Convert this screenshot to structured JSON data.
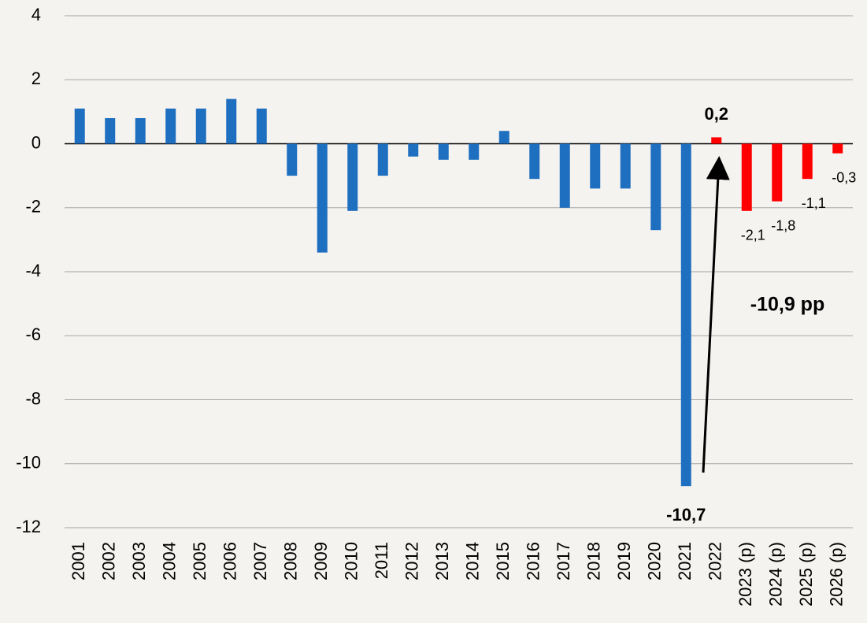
{
  "chart_data": {
    "type": "bar",
    "categories": [
      "2001",
      "2002",
      "2003",
      "2004",
      "2005",
      "2006",
      "2007",
      "2008",
      "2009",
      "2010",
      "2011",
      "2012",
      "2013",
      "2014",
      "2015",
      "2016",
      "2017",
      "2018",
      "2019",
      "2020",
      "2021",
      "2022",
      "2023 (p)",
      "2024 (p)",
      "2025 (p)",
      "2026 (p)"
    ],
    "values": [
      1.1,
      0.8,
      0.8,
      1.1,
      1.1,
      1.4,
      1.1,
      -1.0,
      -3.4,
      -2.1,
      -1.0,
      -0.4,
      -0.5,
      -0.5,
      0.4,
      -1.1,
      -2.0,
      -1.4,
      -1.4,
      -2.7,
      -10.7,
      0.2,
      -2.1,
      -1.8,
      -1.1,
      -0.3
    ],
    "value_labels": [
      null,
      null,
      null,
      null,
      null,
      null,
      null,
      null,
      null,
      null,
      null,
      null,
      null,
      null,
      null,
      null,
      null,
      null,
      null,
      null,
      "-10,7",
      "0,2",
      "-2,1",
      "-1,8",
      "-1,1",
      "-0,3"
    ],
    "value_label_colors": [
      null,
      null,
      null,
      null,
      null,
      null,
      null,
      null,
      null,
      null,
      null,
      null,
      null,
      null,
      null,
      null,
      null,
      null,
      null,
      null,
      "#ff0000",
      "#00b050",
      "#000000",
      "#000000",
      "#000000",
      "#000000"
    ],
    "value_label_bold": [
      false,
      false,
      false,
      false,
      false,
      false,
      false,
      false,
      false,
      false,
      false,
      false,
      false,
      false,
      false,
      false,
      false,
      false,
      false,
      false,
      true,
      true,
      false,
      false,
      false,
      false
    ],
    "colors": [
      "#1f6fc0",
      "#1f6fc0",
      "#1f6fc0",
      "#1f6fc0",
      "#1f6fc0",
      "#1f6fc0",
      "#1f6fc0",
      "#1f6fc0",
      "#1f6fc0",
      "#1f6fc0",
      "#1f6fc0",
      "#1f6fc0",
      "#1f6fc0",
      "#1f6fc0",
      "#1f6fc0",
      "#1f6fc0",
      "#1f6fc0",
      "#1f6fc0",
      "#1f6fc0",
      "#1f6fc0",
      "#1f6fc0",
      "#ff0000",
      "#ff0000",
      "#ff0000",
      "#ff0000",
      "#ff0000"
    ],
    "ylim": [
      -12,
      4
    ],
    "yticks": [
      4,
      2,
      0,
      -2,
      -4,
      -6,
      -8,
      -10,
      -12
    ],
    "grid": true,
    "annotation": "-10,9 pp",
    "annotation_color": "#0d2a6b"
  }
}
